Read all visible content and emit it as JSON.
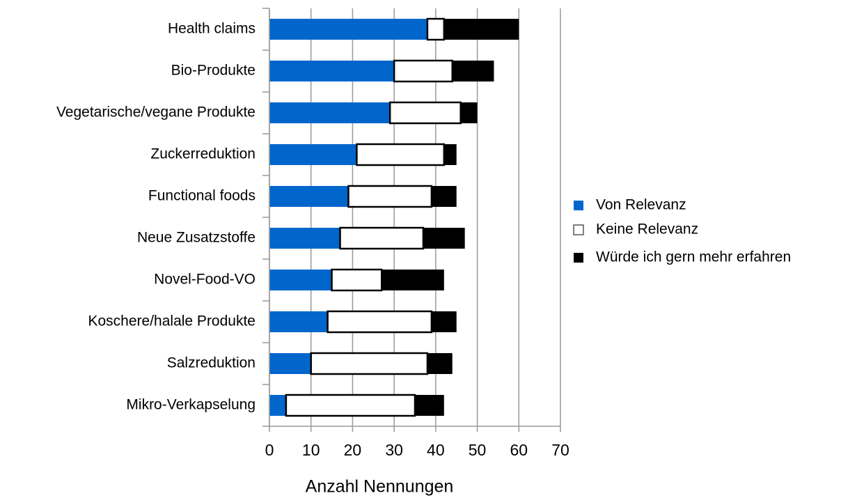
{
  "chart_data": {
    "type": "stacked_barh",
    "xlabel": "Anzahl Nennungen",
    "categories": [
      "Health claims",
      "Bio-Produkte",
      "Vegetarische/vegane Produkte",
      "Zuckerreduktion",
      "Functional foods",
      "Neue Zusatzstoffe",
      "Novel-Food-VO",
      "Koschere/halale Produkte",
      "Salzreduktion",
      "Mikro-Verkapselung"
    ],
    "series": [
      {
        "name": "Von Relevanz",
        "color": "#0066cc",
        "values": [
          38,
          30,
          29,
          21,
          19,
          17,
          15,
          14,
          10,
          4
        ]
      },
      {
        "name": "Keine Relevanz",
        "color": "#ffffff",
        "values": [
          4,
          14,
          17,
          21,
          20,
          20,
          12,
          25,
          28,
          31
        ]
      },
      {
        "name": "Würde ich gern mehr erfahren",
        "color": "#000000",
        "values": [
          18,
          10,
          4,
          3,
          6,
          10,
          15,
          6,
          6,
          7
        ]
      }
    ],
    "xlim": [
      0,
      70
    ],
    "xticks": [
      0,
      10,
      20,
      30,
      40,
      50,
      60,
      70
    ],
    "grid": true,
    "legend": "right"
  }
}
